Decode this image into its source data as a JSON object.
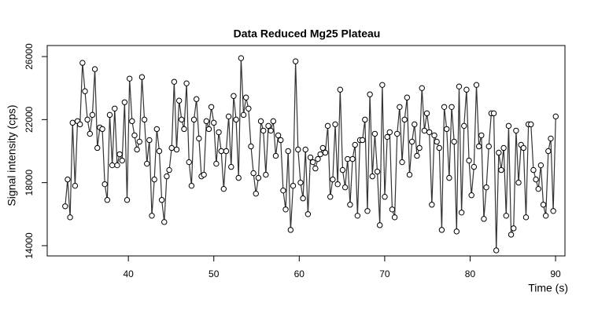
{
  "chart_data": {
    "type": "line",
    "title": "Data Reduced Mg25 Plateau",
    "xlabel": "Time (s)",
    "ylabel": "Signal intensity (cps)",
    "color": "#333333",
    "marker": "circle",
    "x": [
      32.6,
      32.89,
      33.18,
      33.47,
      33.76,
      34.05,
      34.34,
      34.63,
      34.92,
      35.21,
      35.5,
      35.79,
      36.08,
      36.37,
      36.66,
      36.95,
      37.24,
      37.53,
      37.82,
      38.11,
      38.4,
      38.69,
      38.98,
      39.27,
      39.56,
      39.85,
      40.14,
      40.43,
      40.72,
      41.01,
      41.3,
      41.59,
      41.88,
      42.17,
      42.46,
      42.75,
      43.04,
      43.33,
      43.62,
      43.91,
      44.2,
      44.49,
      44.78,
      45.07,
      45.36,
      45.65,
      45.94,
      46.23,
      46.52,
      46.81,
      47.1,
      47.39,
      47.68,
      47.97,
      48.26,
      48.55,
      48.84,
      49.13,
      49.42,
      49.71,
      50,
      50.29,
      50.58,
      50.87,
      51.16,
      51.45,
      51.74,
      52.03,
      52.32,
      52.61,
      52.9,
      53.19,
      53.48,
      53.77,
      54.06,
      54.35,
      54.64,
      54.93,
      55.22,
      55.51,
      55.8,
      56.09,
      56.38,
      56.67,
      56.96,
      57.25,
      57.54,
      57.83,
      58.12,
      58.41,
      58.7,
      58.99,
      59.28,
      59.57,
      59.86,
      60.15,
      60.44,
      60.73,
      61.02,
      61.31,
      61.6,
      61.89,
      62.18,
      62.47,
      62.76,
      63.05,
      63.34,
      63.63,
      63.92,
      64.21,
      64.5,
      64.79,
      65.08,
      65.37,
      65.66,
      65.95,
      66.24,
      66.53,
      66.82,
      67.11,
      67.4,
      67.69,
      67.98,
      68.27,
      68.56,
      68.85,
      69.14,
      69.43,
      69.72,
      70.01,
      70.3,
      70.59,
      70.88,
      71.17,
      71.46,
      71.75,
      72.04,
      72.33,
      72.62,
      72.91,
      73.2,
      73.49,
      73.78,
      74.07,
      74.36,
      74.65,
      74.94,
      75.23,
      75.52,
      75.81,
      76.1,
      76.39,
      76.68,
      76.97,
      77.26,
      77.55,
      77.84,
      78.13,
      78.42,
      78.71,
      79,
      79.29,
      79.58,
      79.87,
      80.16,
      80.45,
      80.74,
      81.03,
      81.32,
      81.61,
      81.9,
      82.19,
      82.48,
      82.77,
      83.06,
      83.35,
      83.64,
      83.93,
      84.22,
      84.51,
      84.8,
      85.09,
      85.38,
      85.67,
      85.96,
      86.25,
      86.54,
      86.83,
      87.12,
      87.41,
      87.7,
      87.99,
      88.28,
      88.57,
      88.86,
      89.15,
      89.44,
      89.73,
      90.02
    ],
    "values": [
      16500,
      18200,
      15800,
      21800,
      17800,
      21900,
      21700,
      25600,
      23800,
      22000,
      21100,
      22300,
      25200,
      20200,
      21500,
      21400,
      17900,
      16900,
      22300,
      19100,
      22700,
      19100,
      19800,
      19400,
      23100,
      16900,
      24600,
      21900,
      21000,
      20100,
      20600,
      24700,
      22000,
      19200,
      20700,
      15900,
      18200,
      21400,
      20000,
      16900,
      15500,
      18400,
      18800,
      20200,
      24400,
      20100,
      23200,
      22000,
      21400,
      24300,
      19300,
      17800,
      22000,
      23300,
      20800,
      18400,
      18500,
      21900,
      21400,
      22800,
      21800,
      19200,
      21200,
      20000,
      17600,
      20000,
      22200,
      19000,
      23500,
      22000,
      18300,
      25900,
      22300,
      23400,
      22700,
      20300,
      18600,
      17300,
      18300,
      21900,
      21300,
      18500,
      21600,
      21300,
      21900,
      19700,
      21000,
      20700,
      17500,
      16300,
      20000,
      15000,
      17800,
      25700,
      20100,
      18000,
      17000,
      20100,
      16000,
      19600,
      19300,
      18900,
      19500,
      19800,
      20200,
      19900,
      21600,
      17100,
      18200,
      21700,
      17900,
      23900,
      18800,
      17700,
      19500,
      16600,
      19500,
      20400,
      15900,
      20700,
      20700,
      22000,
      16200,
      23600,
      18400,
      21100,
      18700,
      15300,
      24200,
      17100,
      20900,
      21200,
      16300,
      15800,
      21100,
      22800,
      19300,
      22000,
      23400,
      18500,
      20600,
      21700,
      19700,
      20200,
      24000,
      21300,
      22400,
      21200,
      16600,
      21000,
      20600,
      20200,
      15000,
      22800,
      21400,
      18300,
      22800,
      20600,
      14900,
      24100,
      16100,
      21600,
      23900,
      19400,
      17200,
      19000,
      24200,
      20300,
      21000,
      15700,
      17700,
      20300,
      22400,
      22400,
      13700,
      19900,
      18800,
      20200,
      15900,
      21600,
      14700,
      15100,
      21300,
      18000,
      20400,
      20200,
      15800,
      21700,
      21700,
      18800,
      18200,
      17600,
      19100,
      16600,
      15900,
      20000,
      20800,
      16200,
      22200
    ],
    "xlim": [
      30.5,
      91.1
    ],
    "ylim": [
      13350,
      26700
    ],
    "xticks": [
      40,
      50,
      60,
      70,
      80,
      90
    ],
    "yticks": [
      14000,
      18000,
      22000,
      26000
    ]
  }
}
